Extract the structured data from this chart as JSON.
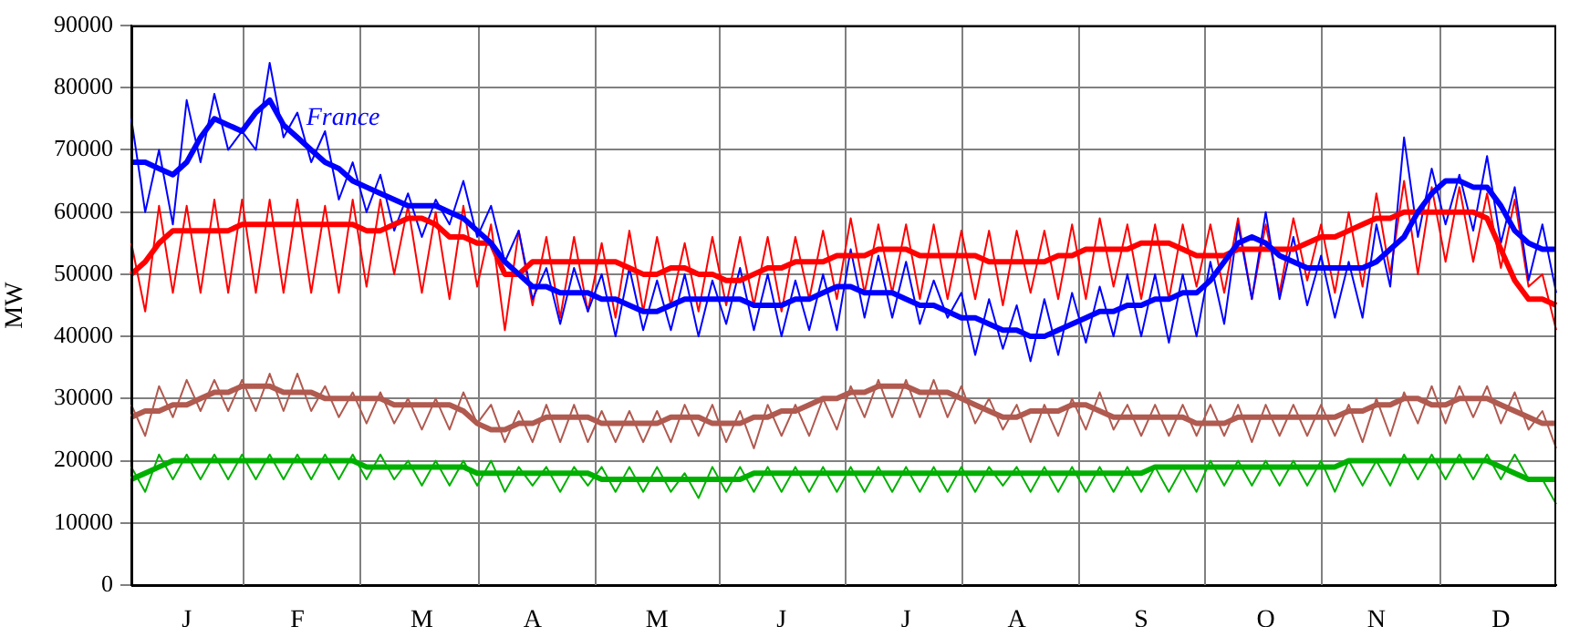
{
  "chart_data": {
    "type": "line",
    "ylabel": "MW",
    "categories": [
      null,
      null,
      null,
      null,
      "J",
      null,
      null,
      null,
      null,
      null,
      null,
      null,
      "F",
      null,
      null,
      null,
      null,
      null,
      null,
      null,
      null,
      "M",
      null,
      null,
      null,
      null,
      null,
      null,
      null,
      "A",
      null,
      null,
      null,
      null,
      null,
      null,
      null,
      null,
      "M",
      null,
      null,
      null,
      null,
      null,
      null,
      null,
      null,
      "J",
      null,
      null,
      null,
      null,
      null,
      null,
      null,
      null,
      "J",
      null,
      null,
      null,
      null,
      null,
      null,
      null,
      "A",
      null,
      null,
      null,
      null,
      null,
      null,
      null,
      null,
      "S",
      null,
      null,
      null,
      null,
      null,
      null,
      null,
      null,
      "O",
      null,
      null,
      null,
      null,
      null,
      null,
      null,
      "N",
      null,
      null,
      null,
      null,
      null,
      null,
      null,
      null,
      "D",
      null,
      null,
      null,
      null
    ],
    "ylim": [
      0,
      90000
    ],
    "yticks": [
      0,
      10000,
      20000,
      30000,
      40000,
      50000,
      60000,
      70000,
      80000,
      90000
    ],
    "grid": true,
    "legend": false,
    "marker": "none",
    "line_style": "solid",
    "series": [
      {
        "color": "#0000ff",
        "values": [
          75000,
          60000,
          70000,
          58000,
          78000,
          68000,
          79000,
          70000,
          73000,
          70000,
          84000,
          72000,
          76000,
          68000,
          73000,
          62000,
          68000,
          60000,
          66000,
          57000,
          63000,
          56000,
          62000,
          58000,
          65000,
          56000,
          61000,
          52000,
          57000,
          46000,
          51000,
          42000,
          51000,
          44000,
          50000,
          40000,
          51000,
          41000,
          49000,
          41000,
          50000,
          40000,
          49000,
          42000,
          51000,
          41000,
          50000,
          40000,
          49000,
          41000,
          50000,
          41000,
          54000,
          43000,
          53000,
          43000,
          52000,
          42000,
          49000,
          43000,
          47000,
          37000,
          46000,
          38000,
          45000,
          36000,
          46000,
          37000,
          47000,
          39000,
          48000,
          40000,
          50000,
          40000,
          50000,
          39000,
          50000,
          40000,
          52000,
          42000,
          58000,
          46000,
          60000,
          46000,
          56000,
          45000,
          53000,
          43000,
          52000,
          43000,
          58000,
          48000,
          72000,
          56000,
          67000,
          58000,
          66000,
          57000,
          69000,
          55000,
          64000,
          49000,
          58000,
          47000
        ]
      },
      {
        "color": "#ff0000",
        "values": [
          55000,
          44000,
          61000,
          47000,
          61000,
          47000,
          62000,
          47000,
          62000,
          47000,
          62000,
          47000,
          62000,
          47000,
          61000,
          47000,
          62000,
          48000,
          62000,
          50000,
          61000,
          47000,
          60000,
          46000,
          61000,
          48000,
          58000,
          41000,
          57000,
          45000,
          56000,
          43000,
          56000,
          44000,
          55000,
          43000,
          57000,
          44000,
          56000,
          45000,
          55000,
          44000,
          56000,
          45000,
          56000,
          45000,
          56000,
          44000,
          56000,
          46000,
          57000,
          46000,
          59000,
          47000,
          58000,
          47000,
          58000,
          46000,
          58000,
          46000,
          57000,
          46000,
          57000,
          45000,
          57000,
          47000,
          57000,
          46000,
          58000,
          46000,
          59000,
          48000,
          58000,
          46000,
          58000,
          46000,
          58000,
          48000,
          58000,
          47000,
          59000,
          46000,
          58000,
          47000,
          59000,
          49000,
          58000,
          47000,
          60000,
          48000,
          63000,
          50000,
          65000,
          50000,
          64000,
          52000,
          64000,
          52000,
          63000,
          51000,
          62000,
          48000,
          50000,
          41000
        ]
      },
      {
        "color": "#b05a50",
        "values": [
          29000,
          24000,
          32000,
          27000,
          33000,
          28000,
          33000,
          28000,
          33000,
          28000,
          34000,
          28000,
          34000,
          28000,
          32000,
          27000,
          31000,
          26000,
          31000,
          26000,
          30000,
          25000,
          30000,
          25000,
          31000,
          26000,
          29000,
          23000,
          28000,
          23000,
          29000,
          23000,
          29000,
          23000,
          28000,
          23000,
          28000,
          23000,
          28000,
          23000,
          29000,
          24000,
          29000,
          23000,
          28000,
          22000,
          29000,
          24000,
          29000,
          24000,
          30000,
          25000,
          32000,
          27000,
          33000,
          27000,
          33000,
          27000,
          33000,
          27000,
          32000,
          26000,
          30000,
          25000,
          29000,
          23000,
          29000,
          24000,
          30000,
          25000,
          31000,
          25000,
          29000,
          24000,
          29000,
          24000,
          29000,
          24000,
          29000,
          24000,
          29000,
          23000,
          29000,
          24000,
          29000,
          24000,
          29000,
          24000,
          29000,
          23000,
          30000,
          24000,
          31000,
          26000,
          32000,
          26000,
          32000,
          27000,
          32000,
          26000,
          31000,
          25000,
          28000,
          22000
        ]
      },
      {
        "color": "#00b000",
        "values": [
          19000,
          15000,
          21000,
          17000,
          21000,
          17000,
          21000,
          17000,
          21000,
          17000,
          21000,
          17000,
          21000,
          17000,
          21000,
          17000,
          21000,
          17000,
          21000,
          17000,
          20000,
          16000,
          20000,
          16000,
          20000,
          16000,
          20000,
          15000,
          19000,
          16000,
          19000,
          15000,
          19000,
          16000,
          19000,
          15000,
          19000,
          15000,
          19000,
          15000,
          18000,
          14000,
          19000,
          15000,
          19000,
          15000,
          19000,
          15000,
          19000,
          15000,
          19000,
          15000,
          19000,
          15000,
          19000,
          15000,
          19000,
          15000,
          19000,
          15000,
          19000,
          15000,
          19000,
          16000,
          19000,
          15000,
          19000,
          15000,
          19000,
          15000,
          19000,
          15000,
          19000,
          15000,
          19000,
          15000,
          19000,
          15000,
          20000,
          16000,
          20000,
          16000,
          20000,
          16000,
          20000,
          16000,
          20000,
          15000,
          20000,
          16000,
          20000,
          16000,
          21000,
          17000,
          21000,
          17000,
          21000,
          17000,
          21000,
          17000,
          21000,
          17000,
          17000,
          13000
        ]
      },
      {
        "name": "France",
        "color": "#0000ff",
        "values": [
          68000,
          68000,
          67000,
          66000,
          68000,
          72000,
          75000,
          74000,
          73000,
          76000,
          78000,
          74000,
          72000,
          70000,
          68000,
          67000,
          65000,
          64000,
          63000,
          62000,
          61000,
          61000,
          61000,
          60000,
          59000,
          57000,
          55000,
          52000,
          50000,
          48000,
          48000,
          47000,
          47000,
          47000,
          46000,
          46000,
          45000,
          44000,
          44000,
          45000,
          46000,
          46000,
          46000,
          46000,
          46000,
          45000,
          45000,
          45000,
          46000,
          46000,
          47000,
          48000,
          48000,
          47000,
          47000,
          47000,
          46000,
          45000,
          45000,
          44000,
          43000,
          43000,
          42000,
          41000,
          41000,
          40000,
          40000,
          41000,
          42000,
          43000,
          44000,
          44000,
          45000,
          45000,
          46000,
          46000,
          47000,
          47000,
          49000,
          52000,
          55000,
          56000,
          55000,
          53000,
          52000,
          51000,
          51000,
          51000,
          51000,
          51000,
          52000,
          54000,
          56000,
          60000,
          63000,
          65000,
          65000,
          64000,
          64000,
          61000,
          57000,
          55000,
          54000,
          54000
        ]
      },
      {
        "color": "#ff0000",
        "values": [
          50000,
          52000,
          55000,
          57000,
          57000,
          57000,
          57000,
          57000,
          58000,
          58000,
          58000,
          58000,
          58000,
          58000,
          58000,
          58000,
          58000,
          57000,
          57000,
          58000,
          59000,
          59000,
          58000,
          56000,
          56000,
          55000,
          55000,
          50000,
          50000,
          52000,
          52000,
          52000,
          52000,
          52000,
          52000,
          52000,
          51000,
          50000,
          50000,
          51000,
          51000,
          50000,
          50000,
          49000,
          49000,
          50000,
          51000,
          51000,
          52000,
          52000,
          52000,
          53000,
          53000,
          53000,
          54000,
          54000,
          54000,
          53000,
          53000,
          53000,
          53000,
          53000,
          52000,
          52000,
          52000,
          52000,
          52000,
          53000,
          53000,
          54000,
          54000,
          54000,
          54000,
          55000,
          55000,
          55000,
          54000,
          53000,
          53000,
          53000,
          54000,
          54000,
          54000,
          54000,
          54000,
          55000,
          56000,
          56000,
          57000,
          58000,
          59000,
          59000,
          60000,
          60000,
          60000,
          60000,
          60000,
          60000,
          59000,
          54000,
          49000,
          46000,
          46000,
          45000
        ]
      },
      {
        "color": "#b05a50",
        "values": [
          27000,
          28000,
          28000,
          29000,
          29000,
          30000,
          31000,
          31000,
          32000,
          32000,
          32000,
          31000,
          31000,
          31000,
          30000,
          30000,
          30000,
          30000,
          30000,
          29000,
          29000,
          29000,
          29000,
          29000,
          28000,
          26000,
          25000,
          25000,
          26000,
          26000,
          27000,
          27000,
          27000,
          27000,
          26000,
          26000,
          26000,
          26000,
          26000,
          27000,
          27000,
          27000,
          26000,
          26000,
          26000,
          27000,
          27000,
          28000,
          28000,
          29000,
          30000,
          30000,
          31000,
          31000,
          32000,
          32000,
          32000,
          31000,
          31000,
          31000,
          30000,
          29000,
          28000,
          27000,
          27000,
          28000,
          28000,
          28000,
          29000,
          29000,
          28000,
          27000,
          27000,
          27000,
          27000,
          27000,
          27000,
          26000,
          26000,
          26000,
          27000,
          27000,
          27000,
          27000,
          27000,
          27000,
          27000,
          27000,
          28000,
          28000,
          29000,
          29000,
          30000,
          30000,
          29000,
          29000,
          30000,
          30000,
          30000,
          29000,
          28000,
          27000,
          26000,
          26000
        ]
      },
      {
        "color": "#00b000",
        "values": [
          17000,
          18000,
          19000,
          20000,
          20000,
          20000,
          20000,
          20000,
          20000,
          20000,
          20000,
          20000,
          20000,
          20000,
          20000,
          20000,
          20000,
          19000,
          19000,
          19000,
          19000,
          19000,
          19000,
          19000,
          19000,
          18000,
          18000,
          18000,
          18000,
          18000,
          18000,
          18000,
          18000,
          18000,
          17000,
          17000,
          17000,
          17000,
          17000,
          17000,
          17000,
          17000,
          17000,
          17000,
          17000,
          18000,
          18000,
          18000,
          18000,
          18000,
          18000,
          18000,
          18000,
          18000,
          18000,
          18000,
          18000,
          18000,
          18000,
          18000,
          18000,
          18000,
          18000,
          18000,
          18000,
          18000,
          18000,
          18000,
          18000,
          18000,
          18000,
          18000,
          18000,
          18000,
          19000,
          19000,
          19000,
          19000,
          19000,
          19000,
          19000,
          19000,
          19000,
          19000,
          19000,
          19000,
          19000,
          19000,
          20000,
          20000,
          20000,
          20000,
          20000,
          20000,
          20000,
          20000,
          20000,
          20000,
          20000,
          19000,
          18000,
          17000,
          17000,
          17000
        ]
      }
    ]
  }
}
